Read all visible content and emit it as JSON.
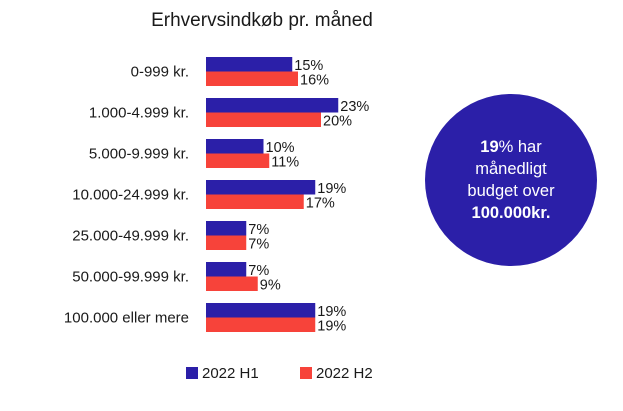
{
  "chart_data": {
    "type": "bar",
    "orientation": "horizontal",
    "title": "Erhvervsindkøb pr. måned",
    "categories": [
      "0-999 kr.",
      "1.000-4.999 kr.",
      "5.000-9.999 kr.",
      "10.000-24.999 kr.",
      "25.000-49.999 kr.",
      "50.000-99.999 kr.",
      "100.000 eller mere"
    ],
    "series": [
      {
        "name": "2022 H1",
        "color": "#2b1fa8",
        "values": [
          15,
          23,
          10,
          19,
          7,
          7,
          19
        ]
      },
      {
        "name": "2022 H2",
        "color": "#f7433a",
        "values": [
          16,
          20,
          11,
          17,
          7,
          9,
          19
        ]
      }
    ],
    "value_suffix": "%",
    "legend_position": "bottom",
    "grid": false
  },
  "callout": {
    "line1_bold": "19",
    "line1_rest": "% har",
    "line2": "månedligt",
    "line3": "budget over",
    "line4_bold": "100.000kr."
  }
}
